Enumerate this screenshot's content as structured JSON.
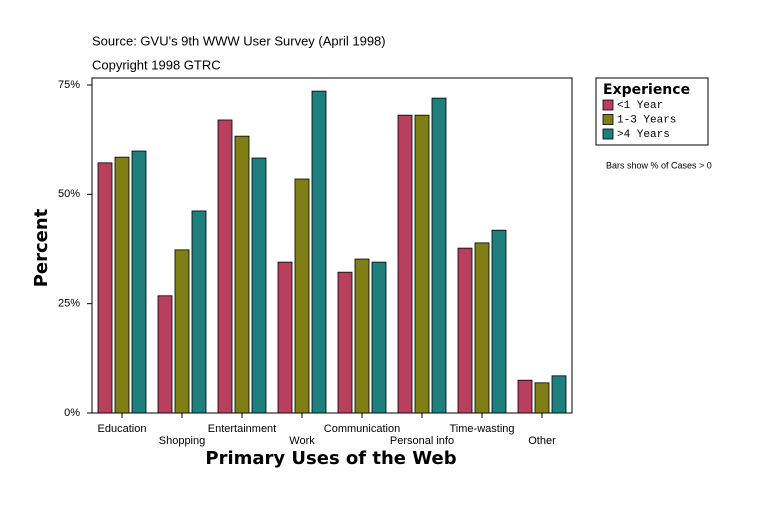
{
  "chart_data": {
    "type": "bar",
    "title": "Source: GVU's 9th WWW User Survey (April 1998)",
    "subtitle": "Copyright 1998 GTRC",
    "x_label": "Primary Uses of the Web",
    "y_label": "Percent",
    "legend_title": "Experience",
    "note": "Bars show % of Cases > 0",
    "legend_position": "right",
    "categories": [
      "Education",
      "Shopping",
      "Entertainment",
      "Work",
      "Communication",
      "Personal info",
      "Time-wasting",
      "Other"
    ],
    "series": [
      {
        "name": "<1 Year",
        "color": "#b8405e",
        "values": [
          57.2,
          26.8,
          67.0,
          34.5,
          32.2,
          68.1,
          37.7,
          7.5
        ]
      },
      {
        "name": "1-3 Years",
        "color": "#7f7f16",
        "values": [
          58.5,
          37.3,
          63.3,
          53.5,
          35.2,
          68.1,
          38.9,
          6.9
        ]
      },
      {
        "name": ">4 Years",
        "color": "#1f7f7f",
        "values": [
          59.9,
          46.2,
          58.3,
          73.6,
          34.5,
          72.0,
          41.8,
          8.5
        ]
      }
    ],
    "ylim": [
      0,
      76.6
    ],
    "yticks": [
      {
        "value": 0,
        "label": "0%"
      },
      {
        "value": 25,
        "label": "25%"
      },
      {
        "value": 50,
        "label": "50%"
      },
      {
        "value": 75,
        "label": "75%"
      }
    ]
  }
}
